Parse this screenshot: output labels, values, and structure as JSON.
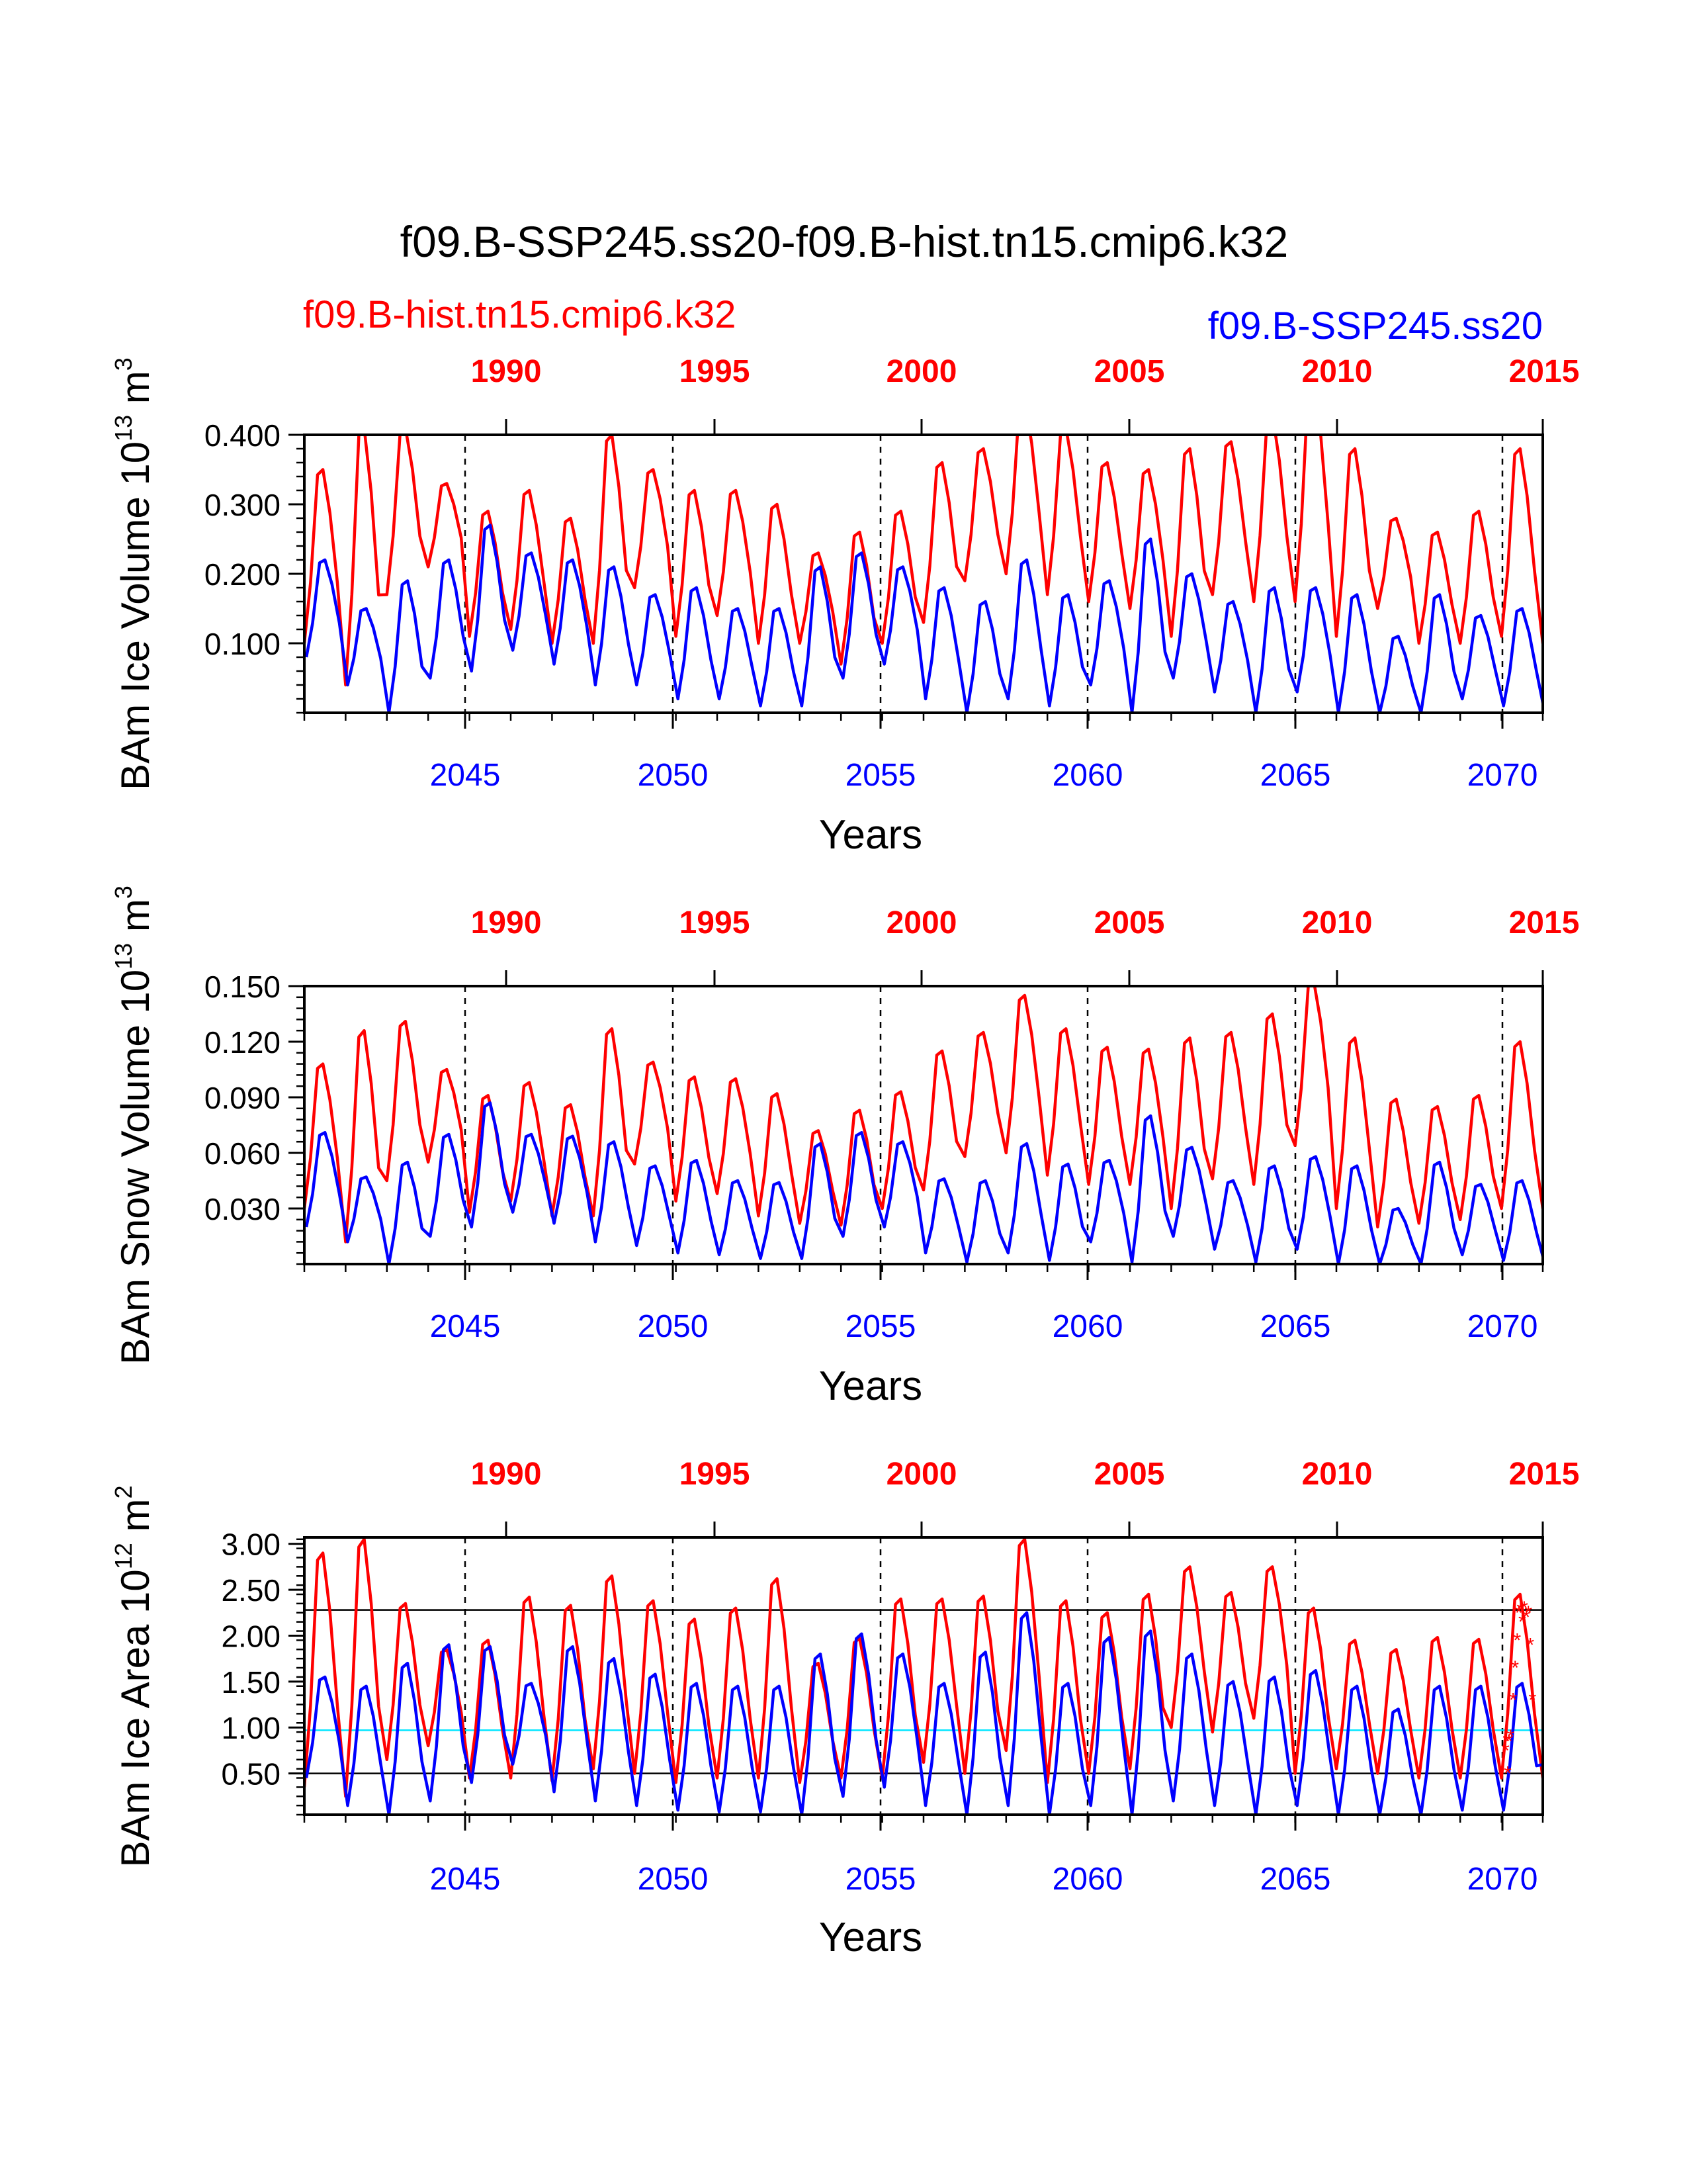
{
  "figure": {
    "title": "f09.B-SSP245.ss20-f09.B-hist.tn15.cmip6.k32",
    "case_red": "f09.B-hist.tn15.cmip6.k32",
    "case_blue": "f09.B-SSP245.ss20",
    "colors": {
      "red": "#ff0000",
      "blue": "#0000ff",
      "ref_cyan": "#00e5ff",
      "axis": "#000000"
    }
  },
  "chart_data": [
    {
      "type": "line",
      "ylabel_main": "BAm Ice Volume 10",
      "ylabel_exp": "13",
      "ylabel_unit": " m",
      "ylabel_unit_exp": "3",
      "xlabel": "Years",
      "ylim": [
        0.0,
        0.4
      ],
      "yticks": [
        0.1,
        0.2,
        0.3,
        0.4
      ],
      "yticklabels": [
        "0.100",
        "0.200",
        "0.300",
        "0.400"
      ],
      "x_bottom_ticks": [
        "2045",
        "2050",
        "2055",
        "2060",
        "2065",
        "2070"
      ],
      "x_top_ticks": [
        "1990",
        "1995",
        "2000",
        "2005",
        "2010",
        "2015"
      ],
      "grid": "dashed vertical lines at bottom-axis year ticks",
      "series_red_peaks": [
        0.35,
        0.41,
        0.41,
        0.33,
        0.29,
        0.32,
        0.28,
        0.4,
        0.35,
        0.32,
        0.32,
        0.3,
        0.23,
        0.26,
        0.29,
        0.36,
        0.38,
        0.45,
        0.41,
        0.36,
        0.35,
        0.38,
        0.39,
        0.43,
        0.48,
        0.38,
        0.28,
        0.26,
        0.29,
        0.38,
        0.39
      ],
      "series_red_troughs": [
        0.1,
        0.04,
        0.17,
        0.21,
        0.11,
        0.12,
        0.1,
        0.1,
        0.18,
        0.11,
        0.14,
        0.1,
        0.1,
        0.07,
        0.1,
        0.13,
        0.19,
        0.2,
        0.17,
        0.16,
        0.15,
        0.11,
        0.17,
        0.16,
        0.16,
        0.11,
        0.15,
        0.1,
        0.1,
        0.11,
        0.1
      ],
      "series_blue_peaks": [
        0.22,
        0.15,
        0.19,
        0.22,
        0.27,
        0.23,
        0.22,
        0.21,
        0.17,
        0.18,
        0.15,
        0.15,
        0.21,
        0.23,
        0.21,
        0.18,
        0.16,
        0.22,
        0.17,
        0.19,
        0.25,
        0.2,
        0.16,
        0.18,
        0.18,
        0.17,
        0.11,
        0.17,
        0.14,
        0.15,
        0.14
      ],
      "series_blue_troughs": [
        0.08,
        0.04,
        0.0,
        0.05,
        0.06,
        0.09,
        0.07,
        0.04,
        0.04,
        0.02,
        0.02,
        0.01,
        0.01,
        0.05,
        0.07,
        0.02,
        0.0,
        0.02,
        0.01,
        0.04,
        0.0,
        0.05,
        0.03,
        0.0,
        0.03,
        0.0,
        0.0,
        0.0,
        0.02,
        0.01,
        0.0
      ]
    },
    {
      "type": "line",
      "ylabel_main": "BAm Snow Volume 10",
      "ylabel_exp": "13",
      "ylabel_unit": " m",
      "ylabel_unit_exp": "3",
      "xlabel": "Years",
      "ylim": [
        0.0,
        0.15
      ],
      "yticks": [
        0.03,
        0.06,
        0.09,
        0.12,
        0.15
      ],
      "yticklabels": [
        "0.030",
        "0.060",
        "0.090",
        "0.120",
        "0.150"
      ],
      "x_bottom_ticks": [
        "2045",
        "2050",
        "2055",
        "2060",
        "2065",
        "2070"
      ],
      "x_top_ticks": [
        "1990",
        "1995",
        "2000",
        "2005",
        "2010",
        "2015"
      ],
      "grid": "dashed vertical lines at bottom-axis year ticks",
      "series_red_peaks": [
        0.108,
        0.126,
        0.131,
        0.105,
        0.091,
        0.098,
        0.086,
        0.127,
        0.109,
        0.101,
        0.1,
        0.092,
        0.072,
        0.083,
        0.093,
        0.115,
        0.125,
        0.145,
        0.127,
        0.117,
        0.116,
        0.122,
        0.125,
        0.135,
        0.153,
        0.122,
        0.089,
        0.085,
        0.091,
        0.12,
        0.122
      ],
      "series_red_troughs": [
        0.03,
        0.012,
        0.045,
        0.055,
        0.028,
        0.034,
        0.026,
        0.026,
        0.054,
        0.034,
        0.038,
        0.026,
        0.022,
        0.021,
        0.03,
        0.04,
        0.058,
        0.06,
        0.048,
        0.043,
        0.043,
        0.03,
        0.046,
        0.043,
        0.064,
        0.03,
        0.02,
        0.022,
        0.024,
        0.03,
        0.03
      ],
      "series_blue_peaks": [
        0.071,
        0.047,
        0.055,
        0.07,
        0.087,
        0.07,
        0.069,
        0.066,
        0.053,
        0.056,
        0.045,
        0.044,
        0.065,
        0.071,
        0.066,
        0.046,
        0.045,
        0.065,
        0.054,
        0.056,
        0.08,
        0.063,
        0.045,
        0.053,
        0.058,
        0.053,
        0.03,
        0.055,
        0.043,
        0.045,
        0.043
      ],
      "series_blue_troughs": [
        0.02,
        0.012,
        0.0,
        0.015,
        0.02,
        0.028,
        0.022,
        0.012,
        0.01,
        0.006,
        0.005,
        0.003,
        0.003,
        0.015,
        0.02,
        0.006,
        0.001,
        0.006,
        0.002,
        0.012,
        0.001,
        0.015,
        0.008,
        0.001,
        0.008,
        0.0,
        0.0,
        0.0,
        0.005,
        0.002,
        0.0
      ]
    },
    {
      "type": "line",
      "ylabel_main": "BAm Ice Area 10",
      "ylabel_exp": "12",
      "ylabel_unit": " m",
      "ylabel_unit_exp": "2",
      "xlabel": "Years",
      "ylim": [
        0.05,
        3.07
      ],
      "yticks": [
        0.5,
        1.0,
        1.5,
        2.0,
        2.5,
        3.0
      ],
      "yticklabels": [
        "0.50",
        "1.00",
        "1.50",
        "2.00",
        "2.50",
        "3.00"
      ],
      "x_bottom_ticks": [
        "2045",
        "2050",
        "2055",
        "2060",
        "2065",
        "2070"
      ],
      "x_top_ticks": [
        "1990",
        "1995",
        "2000",
        "2005",
        "2010",
        "2015"
      ],
      "grid": "dashed vertical lines at bottom-axis year ticks",
      "ref_lines": [
        {
          "y": 2.28,
          "color": "#000000"
        },
        {
          "y": 0.5,
          "color": "#000000"
        },
        {
          "y": 0.97,
          "color": "#00e5ff"
        }
      ],
      "series_red_peaks": [
        2.9,
        3.05,
        2.35,
        1.85,
        1.95,
        2.42,
        2.33,
        2.65,
        2.38,
        2.18,
        2.3,
        2.62,
        1.7,
        1.97,
        2.4,
        2.4,
        2.43,
        3.05,
        2.38,
        2.25,
        2.45,
        2.75,
        2.47,
        2.75,
        2.3,
        1.95,
        1.85,
        1.98,
        1.96,
        2.45,
        2.6
      ],
      "series_red_troughs": [
        0.35,
        0.25,
        0.65,
        0.8,
        0.45,
        0.45,
        0.42,
        0.55,
        0.5,
        0.4,
        0.45,
        0.45,
        0.4,
        0.45,
        0.45,
        0.62,
        0.5,
        0.75,
        0.4,
        0.5,
        0.55,
        1.0,
        0.95,
        1.1,
        0.5,
        0.55,
        0.5,
        0.45,
        0.45,
        0.45,
        0.45
      ],
      "series_blue_peaks": [
        1.55,
        1.45,
        1.7,
        1.9,
        1.88,
        1.48,
        1.88,
        1.75,
        1.58,
        1.48,
        1.45,
        1.45,
        1.8,
        2.02,
        1.8,
        1.48,
        1.82,
        2.25,
        1.48,
        1.98,
        2.05,
        1.8,
        1.5,
        1.55,
        1.62,
        1.45,
        1.2,
        1.45,
        1.45,
        1.48,
        1.4
      ],
      "series_blue_troughs": [
        0.45,
        0.15,
        0.05,
        0.2,
        0.4,
        0.6,
        0.3,
        0.2,
        0.15,
        0.1,
        0.08,
        0.08,
        0.05,
        0.25,
        0.35,
        0.15,
        0.05,
        0.15,
        0.05,
        0.15,
        0.05,
        0.2,
        0.15,
        0.05,
        0.15,
        0.05,
        0.05,
        0.05,
        0.1,
        0.1,
        0.6
      ],
      "red_star_points": [
        [
          0.1,
          0.75
        ],
        [
          0.12,
          0.85
        ],
        [
          0.15,
          0.5
        ],
        [
          0.18,
          0.85
        ],
        [
          0.22,
          0.9
        ],
        [
          0.28,
          1.3
        ],
        [
          0.33,
          1.65
        ],
        [
          0.38,
          1.95
        ],
        [
          0.42,
          2.25
        ],
        [
          0.46,
          2.28
        ],
        [
          0.5,
          2.15
        ],
        [
          0.55,
          2.3
        ],
        [
          0.6,
          2.2
        ],
        [
          0.65,
          2.25
        ],
        [
          0.7,
          1.9
        ],
        [
          0.75,
          1.3
        ]
      ]
    }
  ]
}
